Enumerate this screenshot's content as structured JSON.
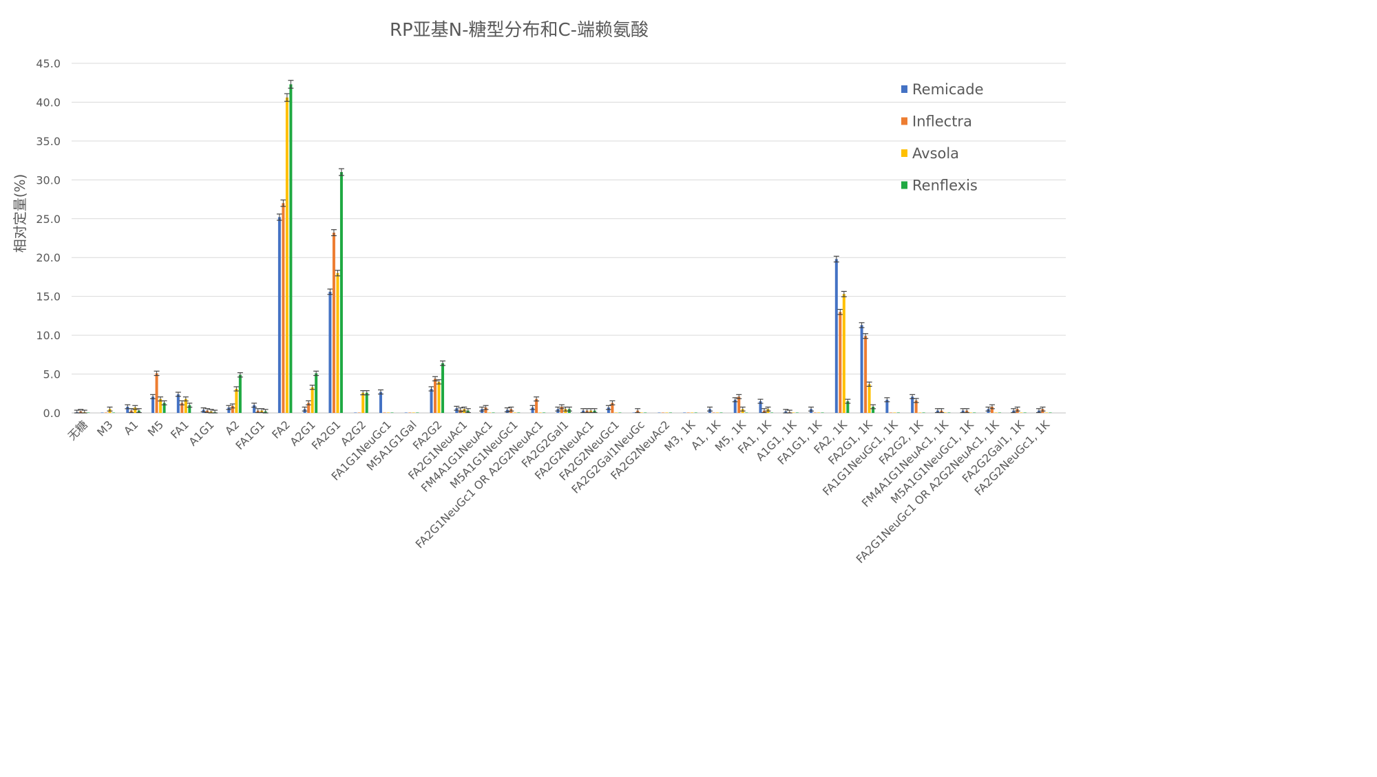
{
  "chart_data": {
    "type": "bar",
    "title": "RP亚基N-糖型分布和C-端赖氨酸",
    "xlabel": "",
    "ylabel": "相对定量(%)",
    "ylim": [
      0,
      45
    ],
    "yticks": [
      "0.0",
      "5.0",
      "10.0",
      "15.0",
      "20.0",
      "25.0",
      "30.0",
      "35.0",
      "40.0",
      "45.0"
    ],
    "grid": true,
    "error_bars": true,
    "legend_position": "top-right",
    "categories": [
      "无糖",
      "M3",
      "A1",
      "M5",
      "FA1",
      "A1G1",
      "A2",
      "FA1G1",
      "FA2",
      "A2G1",
      "FA2G1",
      "A2G2",
      "FA1G1NeuGc1",
      "M5A1G1Gal",
      "FA2G2",
      "FA2G1NeuAc1",
      "FM4A1G1NeuAc1",
      "M5A1G1NeuGc1",
      "FA2G1NeuGc1 OR A2G2NeuAc1",
      "FA2G2Gal1",
      "FA2G2NeuAc1",
      "FA2G2NeuGc1",
      "FA2G2Gal1NeuGc",
      "FA2G2NeuAc2",
      "M3, 1K",
      "A1, 1K",
      "M5, 1K",
      "FA1, 1K",
      "A1G1, 1K",
      "FA1G1, 1K",
      "FA2, 1K",
      "FA2G1, 1K",
      "FA1G1NeuGc1, 1K",
      "FA2G2, 1K",
      "FM4A1G1NeuAc1, 1K",
      "M5A1G1NeuGc1, 1K",
      "FA2G1NeuGc1 OR A2G2NeuAc1, 1K",
      "FA2G2Gal1, 1K",
      "FA2G2NeuGc1, 1K"
    ],
    "series": [
      {
        "name": "Remicade",
        "color": "#4472C4",
        "values": [
          0.1,
          0.0,
          0.8,
          2.1,
          2.4,
          0.4,
          0.7,
          1.0,
          25.2,
          0.5,
          15.6,
          0.0,
          2.7,
          0.0,
          3.1,
          0.6,
          0.5,
          0.4,
          0.7,
          0.5,
          0.3,
          0.7,
          0.0,
          0.0,
          0.0,
          0.5,
          1.7,
          1.5,
          0.2,
          0.5,
          19.8,
          11.3,
          1.7,
          2.1,
          0.3,
          0.3,
          0.5,
          0.3,
          0.3
        ]
      },
      {
        "name": "Inflectra",
        "color": "#ED7D31",
        "values": [
          0.2,
          0.0,
          0.3,
          5.1,
          1.3,
          0.3,
          0.9,
          0.3,
          27.0,
          1.3,
          23.2,
          0.0,
          0.0,
          0.0,
          4.4,
          0.4,
          0.7,
          0.5,
          1.8,
          0.8,
          0.3,
          1.3,
          0.3,
          0.0,
          0.0,
          0.0,
          2.1,
          0.3,
          0.1,
          0.0,
          13.0,
          9.9,
          0.0,
          1.6,
          0.3,
          0.3,
          0.8,
          0.5,
          0.5
        ]
      },
      {
        "name": "Avsola",
        "color": "#FFC000",
        "values": [
          0.1,
          0.5,
          0.7,
          1.8,
          1.8,
          0.2,
          3.1,
          0.3,
          40.6,
          3.3,
          18.0,
          2.6,
          0.0,
          0.0,
          4.0,
          0.5,
          0.0,
          0.0,
          0.0,
          0.5,
          0.3,
          0.0,
          0.0,
          0.0,
          0.0,
          0.0,
          0.5,
          0.5,
          0.0,
          0.0,
          15.3,
          3.7,
          0.0,
          0.0,
          0.0,
          0.0,
          0.0,
          0.0,
          0.0
        ]
      },
      {
        "name": "Renflexis",
        "color": "#1FA942",
        "values": [
          0.0,
          0.0,
          0.3,
          1.3,
          1.0,
          0.1,
          4.9,
          0.2,
          42.3,
          5.1,
          31.0,
          2.6,
          0.0,
          0.0,
          6.4,
          0.3,
          0.0,
          0.0,
          0.0,
          0.5,
          0.3,
          0.0,
          0.0,
          0.0,
          0.0,
          0.0,
          0.0,
          0.0,
          0.0,
          0.0,
          1.5,
          0.8,
          0.0,
          0.0,
          0.0,
          0.0,
          0.0,
          0.0,
          0.0
        ]
      }
    ]
  }
}
